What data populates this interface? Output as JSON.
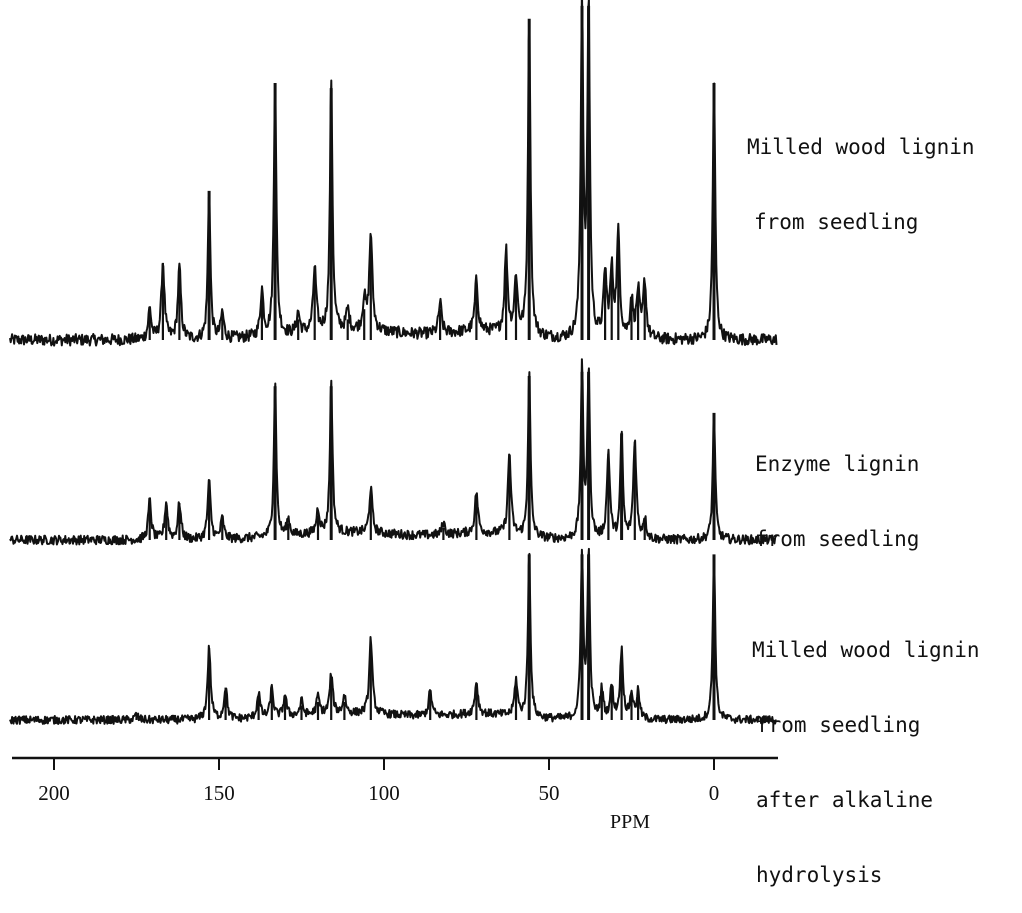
{
  "chart_data": {
    "type": "line",
    "xlabel": "PPM",
    "xlim": [
      217,
      -17
    ],
    "x_reversed": true,
    "xticks": [
      200,
      150,
      100,
      50,
      0
    ],
    "grid": false,
    "legend": "none",
    "series": [
      {
        "name_lines": [
          "Milled wood lignin",
          "from seedling"
        ],
        "color": "#111111",
        "peaks": [
          {
            "ppm": 171,
            "height": 0.12
          },
          {
            "ppm": 167,
            "height": 0.3
          },
          {
            "ppm": 162,
            "height": 0.28
          },
          {
            "ppm": 153,
            "height": 0.58
          },
          {
            "ppm": 149,
            "height": 0.1
          },
          {
            "ppm": 137,
            "height": 0.18
          },
          {
            "ppm": 133,
            "height": 1.0
          },
          {
            "ppm": 126,
            "height": 0.08
          },
          {
            "ppm": 121,
            "height": 0.25
          },
          {
            "ppm": 116,
            "height": 0.98
          },
          {
            "ppm": 111,
            "height": 0.08
          },
          {
            "ppm": 106,
            "height": 0.12
          },
          {
            "ppm": 104,
            "height": 0.38
          },
          {
            "ppm": 83,
            "height": 0.12
          },
          {
            "ppm": 72,
            "height": 0.2
          },
          {
            "ppm": 63,
            "height": 0.32
          },
          {
            "ppm": 60,
            "height": 0.22
          },
          {
            "ppm": 56,
            "height": 1.25
          },
          {
            "ppm": 40,
            "height": 1.3
          },
          {
            "ppm": 38,
            "height": 1.3
          },
          {
            "ppm": 33,
            "height": 0.25
          },
          {
            "ppm": 31,
            "height": 0.25
          },
          {
            "ppm": 29,
            "height": 0.4
          },
          {
            "ppm": 25,
            "height": 0.15
          },
          {
            "ppm": 23,
            "height": 0.18
          },
          {
            "ppm": 21,
            "height": 0.22
          },
          {
            "ppm": 0,
            "height": 1.0
          }
        ]
      },
      {
        "name_lines": [
          "Enzyme lignin",
          "from seedling"
        ],
        "color": "#111111",
        "peaks": [
          {
            "ppm": 171,
            "height": 0.19
          },
          {
            "ppm": 166,
            "height": 0.18
          },
          {
            "ppm": 162,
            "height": 0.18
          },
          {
            "ppm": 153,
            "height": 0.28
          },
          {
            "ppm": 149,
            "height": 0.1
          },
          {
            "ppm": 133,
            "height": 0.75
          },
          {
            "ppm": 129,
            "height": 0.08
          },
          {
            "ppm": 120,
            "height": 0.12
          },
          {
            "ppm": 116,
            "height": 0.75
          },
          {
            "ppm": 104,
            "height": 0.22
          },
          {
            "ppm": 82,
            "height": 0.06
          },
          {
            "ppm": 72,
            "height": 0.2
          },
          {
            "ppm": 62,
            "height": 0.4
          },
          {
            "ppm": 56,
            "height": 0.8
          },
          {
            "ppm": 40,
            "height": 0.82
          },
          {
            "ppm": 38,
            "height": 0.82
          },
          {
            "ppm": 32,
            "height": 0.42
          },
          {
            "ppm": 28,
            "height": 0.52
          },
          {
            "ppm": 24,
            "height": 0.48
          },
          {
            "ppm": 21,
            "height": 0.1
          },
          {
            "ppm": 0,
            "height": 0.62
          }
        ]
      },
      {
        "name_lines": [
          "Milled wood lignin",
          "from seedling",
          "after alkaline",
          "hydrolysis"
        ],
        "color": "#111111",
        "peaks": [
          {
            "ppm": 175,
            "height": 0.03
          },
          {
            "ppm": 153,
            "height": 0.4
          },
          {
            "ppm": 148,
            "height": 0.18
          },
          {
            "ppm": 138,
            "height": 0.14
          },
          {
            "ppm": 134,
            "height": 0.16
          },
          {
            "ppm": 130,
            "height": 0.12
          },
          {
            "ppm": 125,
            "height": 0.08
          },
          {
            "ppm": 120,
            "height": 0.1
          },
          {
            "ppm": 116,
            "height": 0.22
          },
          {
            "ppm": 112,
            "height": 0.1
          },
          {
            "ppm": 104,
            "height": 0.42
          },
          {
            "ppm": 86,
            "height": 0.14
          },
          {
            "ppm": 72,
            "height": 0.18
          },
          {
            "ppm": 60,
            "height": 0.2
          },
          {
            "ppm": 56,
            "height": 0.92
          },
          {
            "ppm": 40,
            "height": 0.92
          },
          {
            "ppm": 38,
            "height": 0.92
          },
          {
            "ppm": 34,
            "height": 0.16
          },
          {
            "ppm": 31,
            "height": 0.18
          },
          {
            "ppm": 28,
            "height": 0.38
          },
          {
            "ppm": 25,
            "height": 0.14
          },
          {
            "ppm": 23,
            "height": 0.15
          },
          {
            "ppm": 0,
            "height": 0.92
          }
        ]
      }
    ]
  }
}
